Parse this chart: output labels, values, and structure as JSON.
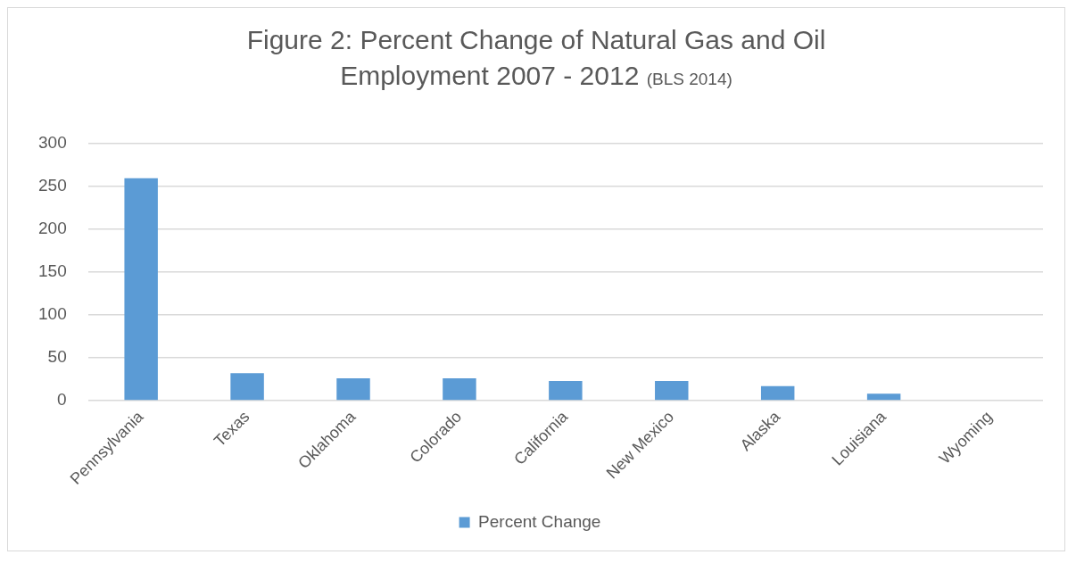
{
  "chart_data": {
    "type": "bar",
    "title": "Figure 2: Percent Change of Natural Gas and Oil Employment 2007 - 2012",
    "annotations": [
      "(BLS 2014)"
    ],
    "categories": [
      "Pennsylvania",
      "Texas",
      "Oklahoma",
      "Colorado",
      "California",
      "New Mexico",
      "Alaska",
      "Louisiana",
      "Wyoming"
    ],
    "series": [
      {
        "name": "Percent Change",
        "color": "#5b9bd5",
        "values": [
          259,
          32,
          26,
          26,
          23,
          23,
          17,
          8,
          0
        ]
      }
    ],
    "ylim": [
      0,
      300
    ],
    "yticks": [
      0,
      50,
      100,
      150,
      200,
      250,
      300
    ],
    "grid": "y",
    "legend": "bottom"
  }
}
